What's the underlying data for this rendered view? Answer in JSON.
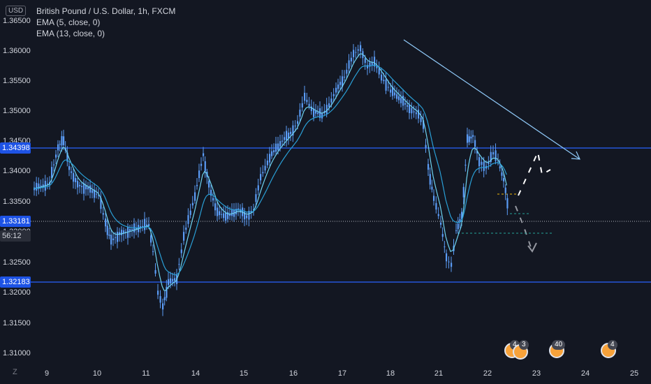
{
  "header": {
    "currency": "USD",
    "symbol": "British Pound / U.S. Dollar, 1h, FXCM",
    "indicators": [
      "EMA (5, close, 0)",
      "EMA (13, close, 0)"
    ]
  },
  "price_axis": {
    "labels": [
      "1.36500",
      "1.36000",
      "1.35500",
      "1.35000",
      "1.34500",
      "1.34000",
      "1.33500",
      "1.33000",
      "1.32500",
      "1.32000",
      "1.31500",
      "1.31000"
    ],
    "tags": {
      "level_upper": "1.34398",
      "current_price": "1.33181",
      "countdown": "56:12",
      "level_lower": "1.32183"
    }
  },
  "time_axis": {
    "labels": [
      "9",
      "10",
      "11",
      "14",
      "15",
      "16",
      "17",
      "18",
      "21",
      "22",
      "23",
      "24",
      "25"
    ],
    "z_label": "Z"
  },
  "events": [
    {
      "badge": "4",
      "extra": "3"
    },
    {
      "badge": "40"
    },
    {
      "badge": "4"
    }
  ],
  "colors": {
    "background": "#131722",
    "candle": "#5b9cf6",
    "ema_fast": "#6fd3f0",
    "ema_slow": "#2a9fd6",
    "horizontal_lines": "#2962ff",
    "arrow": "#90caf9"
  }
}
